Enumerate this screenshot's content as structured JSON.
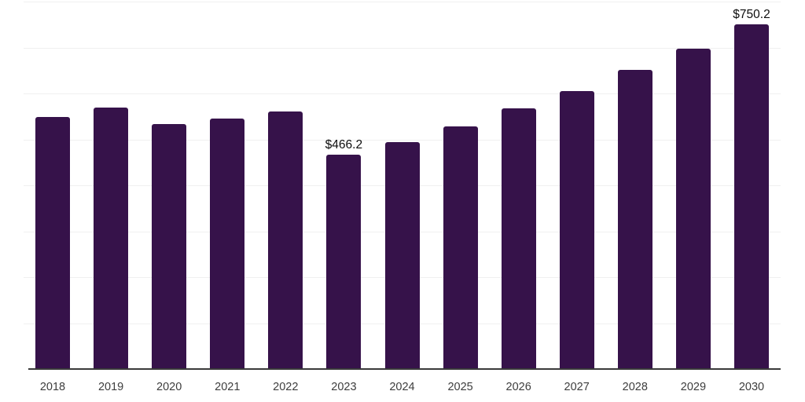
{
  "chart_data": {
    "type": "bar",
    "title": "",
    "xlabel": "",
    "ylabel": "",
    "ylim": [
      0,
      800
    ],
    "gridline_step": 100,
    "grid": "horizontal",
    "legend": "none",
    "value_unit_prefix": "$",
    "categories": [
      "2018",
      "2019",
      "2020",
      "2021",
      "2022",
      "2023",
      "2024",
      "2025",
      "2026",
      "2027",
      "2028",
      "2029",
      "2030"
    ],
    "values": [
      549,
      570,
      533,
      546,
      560,
      466.2,
      494,
      529,
      567,
      606,
      651,
      698,
      750.2
    ],
    "points": [
      {
        "year": "2018",
        "value": 549
      },
      {
        "year": "2019",
        "value": 570
      },
      {
        "year": "2020",
        "value": 533
      },
      {
        "year": "2021",
        "value": 546
      },
      {
        "year": "2022",
        "value": 560
      },
      {
        "year": "2023",
        "value": 466.2,
        "label": "$466.2"
      },
      {
        "year": "2024",
        "value": 494
      },
      {
        "year": "2025",
        "value": 529
      },
      {
        "year": "2026",
        "value": 567
      },
      {
        "year": "2027",
        "value": 606
      },
      {
        "year": "2028",
        "value": 651
      },
      {
        "year": "2029",
        "value": 698
      },
      {
        "year": "2030",
        "value": 750.2,
        "label": "$750.2"
      }
    ],
    "annotations": [
      "$466.2",
      "$750.2"
    ],
    "colors": {
      "bar": "#36124a",
      "gridline": "#f0f0f0",
      "axis_line": "#3a3a3a",
      "tick_label": "#3d3d3d",
      "value_label": "#0d0d0d",
      "background": "#ffffff"
    }
  }
}
